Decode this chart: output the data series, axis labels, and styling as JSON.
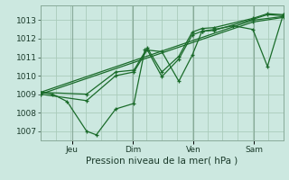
{
  "background_color": "#cce8e0",
  "grid_color": "#aaccbb",
  "line_color": "#1a6b2a",
  "marker_color": "#1a6b2a",
  "xlabel": "Pression niveau de la mer( hPa )",
  "ylim": [
    1006.5,
    1013.8
  ],
  "yticks": [
    1007,
    1008,
    1009,
    1010,
    1011,
    1012,
    1013
  ],
  "xtick_labels": [
    "Jeu",
    "Dim",
    "Ven",
    "Sam"
  ],
  "xtick_positions": [
    0.13,
    0.38,
    0.63,
    0.88
  ],
  "series": [
    {
      "x": [
        0.0,
        0.05,
        0.11,
        0.19,
        0.23,
        0.31,
        0.385,
        0.43,
        0.5,
        0.57,
        0.625,
        0.665,
        0.715,
        0.795,
        0.875,
        0.935,
        1.0
      ],
      "y": [
        1009.1,
        1009.0,
        1008.6,
        1007.0,
        1006.8,
        1008.2,
        1008.5,
        1011.4,
        1011.3,
        1009.7,
        1011.1,
        1012.4,
        1012.5,
        1012.7,
        1012.5,
        1010.5,
        1013.3
      ]
    },
    {
      "x": [
        0.0,
        0.19,
        0.31,
        0.385,
        0.44,
        0.5,
        0.57,
        0.625,
        0.665,
        0.715,
        0.875,
        0.935,
        1.0
      ],
      "y": [
        1009.1,
        1009.0,
        1010.2,
        1010.3,
        1011.5,
        1010.2,
        1011.05,
        1012.35,
        1012.55,
        1012.6,
        1013.1,
        1013.35,
        1013.3
      ]
    },
    {
      "x": [
        0.0,
        0.875,
        1.0
      ],
      "y": [
        1009.1,
        1013.0,
        1013.2
      ]
    },
    {
      "x": [
        0.0,
        0.875,
        1.0
      ],
      "y": [
        1009.0,
        1012.9,
        1013.15
      ]
    },
    {
      "x": [
        0.0,
        0.19,
        0.31,
        0.385,
        0.44,
        0.5,
        0.57,
        0.625,
        0.665,
        0.715,
        0.875,
        0.935,
        1.0
      ],
      "y": [
        1009.0,
        1008.65,
        1010.0,
        1010.2,
        1011.4,
        1009.95,
        1010.9,
        1012.2,
        1012.4,
        1012.45,
        1013.05,
        1013.3,
        1013.25
      ]
    }
  ]
}
